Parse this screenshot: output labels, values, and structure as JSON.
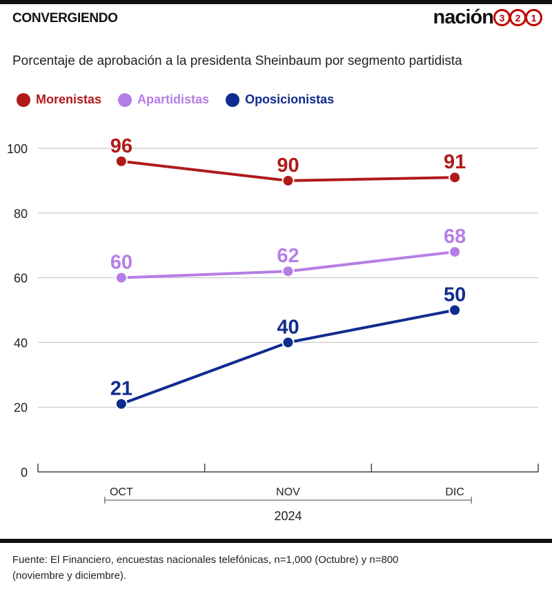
{
  "header": {
    "kicker": "CONVERGIENDO",
    "brand_word": "nación",
    "brand_digits": [
      "3",
      "2",
      "1"
    ]
  },
  "subtitle": "Porcentaje de aprobación a la presidenta Sheinbaum por segmento partidista",
  "colors": {
    "brand_red": "#c00000",
    "morenistas": "#b01a1a",
    "apartidistas": "#b57ee6",
    "oposicionistas": "#0f2b8f",
    "grid": "#bdbdbd"
  },
  "chart_data": {
    "type": "line",
    "categories": [
      "OCT",
      "NOV",
      "DIC"
    ],
    "xgroup_label": "2024",
    "series": [
      {
        "name": "Morenistas",
        "color": "#b01a1a",
        "values": [
          96,
          90,
          91
        ]
      },
      {
        "name": "Apartidistas",
        "color": "#b57ee6",
        "values": [
          60,
          62,
          68
        ]
      },
      {
        "name": "Oposicionistas",
        "color": "#0f2b8f",
        "values": [
          21,
          40,
          50
        ]
      }
    ],
    "yticks": [
      0,
      20,
      40,
      60,
      80,
      100
    ],
    "ylim": [
      0,
      100
    ],
    "grid": true,
    "legend_position": "top-left",
    "data_labels": true
  },
  "source": {
    "text": "Fuente: El Financiero, encuestas nacionales telefónicas, n=1,000 (Octubre) y n=800 (noviembre y diciembre)."
  }
}
